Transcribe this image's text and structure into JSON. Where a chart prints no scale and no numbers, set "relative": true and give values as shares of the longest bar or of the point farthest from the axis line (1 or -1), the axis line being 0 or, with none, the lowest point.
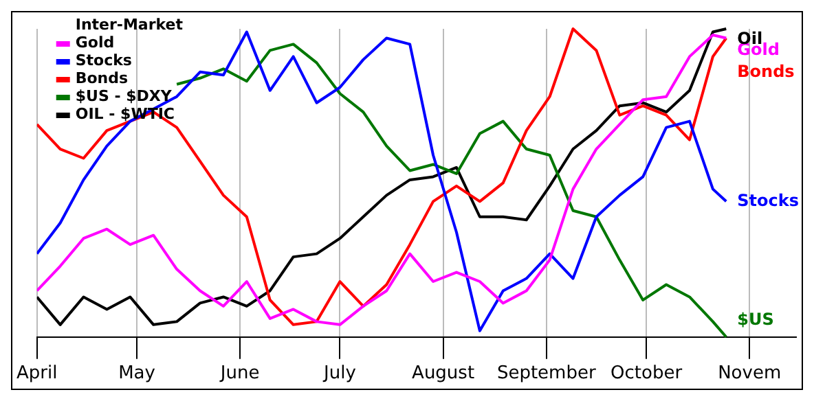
{
  "chart_data": {
    "type": "line",
    "relative": true,
    "legend_title": "Inter-Market",
    "legend": "top left",
    "grid": "x",
    "marker": "none",
    "line_style": "solid",
    "x": [
      "--04-01",
      "--04-08",
      "--04-15",
      "--04-22",
      "--04-29",
      "--05-06",
      "--05-13",
      "--05-20",
      "--05-27",
      "--06-03",
      "--06-10",
      "--06-17",
      "--06-24",
      "--07-01",
      "--07-08",
      "--07-15",
      "--07-22",
      "--07-29",
      "--08-05",
      "--08-12",
      "--08-19",
      "--08-26",
      "--09-02",
      "--09-09",
      "--09-16",
      "--09-23",
      "--09-30",
      "--10-07",
      "--10-14",
      "--10-21",
      "--10-25"
    ],
    "xlim": [
      "--04-01",
      "--11-15"
    ],
    "xticks": [
      {
        "value": "--04-01",
        "label": "April"
      },
      {
        "value": "--05-01",
        "label": "May"
      },
      {
        "value": "--06-01",
        "label": "June"
      },
      {
        "value": "--07-01",
        "label": "July"
      },
      {
        "value": "--08-01",
        "label": "August"
      },
      {
        "value": "--09-01",
        "label": "September"
      },
      {
        "value": "--10-01",
        "label": "October"
      },
      {
        "value": "--11-01",
        "label": "Novem"
      }
    ],
    "series": [
      {
        "name": "Gold",
        "color": "#ff00ff",
        "values": [
          0.15,
          0.23,
          0.32,
          0.35,
          0.3,
          0.33,
          0.22,
          0.15,
          0.1,
          0.18,
          0.06,
          0.09,
          0.05,
          0.04,
          0.1,
          0.15,
          0.27,
          0.18,
          0.21,
          0.18,
          0.11,
          0.15,
          0.25,
          0.48,
          0.61,
          0.69,
          0.77,
          0.78,
          0.91,
          0.98,
          0.97
        ]
      },
      {
        "name": "Stocks",
        "color": "#0000ff",
        "values": [
          0.27,
          0.37,
          0.51,
          0.62,
          0.7,
          0.74,
          0.78,
          0.86,
          0.85,
          0.99,
          0.8,
          0.91,
          0.76,
          0.81,
          0.9,
          0.97,
          0.95,
          0.59,
          0.34,
          0.02,
          0.15,
          0.19,
          0.27,
          0.19,
          0.39,
          0.46,
          0.52,
          0.68,
          0.7,
          0.48,
          0.44
        ]
      },
      {
        "name": "Bonds",
        "color": "#ff0000",
        "values": [
          0.69,
          0.61,
          0.58,
          0.67,
          0.7,
          0.73,
          0.68,
          0.57,
          0.46,
          0.39,
          0.12,
          0.04,
          0.05,
          0.18,
          0.1,
          0.17,
          0.3,
          0.44,
          0.49,
          0.44,
          0.5,
          0.67,
          0.78,
          1.0,
          0.93,
          0.72,
          0.75,
          0.72,
          0.64,
          0.91,
          0.97
        ]
      },
      {
        "name": "$US - $DXY",
        "color": "#007700",
        "values": [
          null,
          null,
          null,
          null,
          null,
          null,
          0.82,
          0.84,
          0.87,
          0.83,
          0.93,
          0.95,
          0.89,
          0.79,
          0.73,
          0.62,
          0.54,
          0.56,
          0.53,
          0.66,
          0.7,
          0.61,
          0.59,
          0.41,
          0.39,
          0.25,
          0.12,
          0.17,
          0.13,
          0.05,
          0.0
        ]
      },
      {
        "name": "OIL - $WTIC",
        "color": "#000000",
        "values": [
          0.13,
          0.04,
          0.13,
          0.09,
          0.13,
          0.04,
          0.05,
          0.11,
          0.13,
          0.1,
          0.15,
          0.26,
          0.27,
          0.32,
          0.39,
          0.46,
          0.51,
          0.52,
          0.55,
          0.39,
          0.39,
          0.38,
          0.49,
          0.61,
          0.67,
          0.75,
          0.76,
          0.73,
          0.8,
          0.99,
          1.0
        ]
      }
    ],
    "annotations": [
      "Gold",
      "Stocks",
      "Bonds",
      "$US",
      "Oil"
    ]
  }
}
